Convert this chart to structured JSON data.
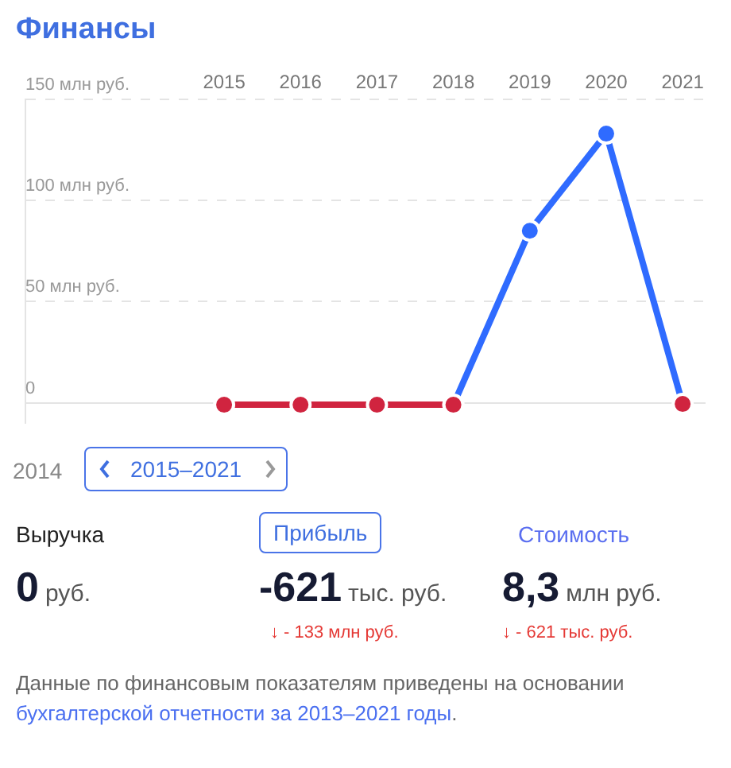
{
  "chart_data": {
    "type": "line",
    "title": "Финансы",
    "series": [
      {
        "color": "#d0243f",
        "x": [
          2015,
          2016,
          2017,
          2018
        ],
        "values": [
          -1,
          -1,
          -1,
          -1
        ]
      },
      {
        "color": "#2f6bff",
        "x": [
          2018,
          2019,
          2020,
          2021
        ],
        "values": [
          -1,
          85,
          133,
          -0.6
        ],
        "colors": [
          "#d0243f",
          "#2f6bff",
          "#2f6bff",
          "#d0243f"
        ]
      }
    ],
    "xlim": [
      2012.4,
      2021.3
    ],
    "xticks": [
      2015,
      2016,
      2017,
      2018,
      2019,
      2020,
      2021
    ],
    "ylim": [
      -10,
      150
    ],
    "yticks": [
      0,
      {
        "value": 50,
        "label": "50 млн руб."
      },
      {
        "value": 100,
        "label": "100 млн руб."
      },
      {
        "value": 150,
        "label": "150 млн руб."
      }
    ],
    "grid": "y",
    "legend": false,
    "marker": "circle",
    "line_style": "solid",
    "annotations": [
      "2014",
      "2015–2021",
      "Выручка",
      "Прибыль",
      "Стоимость",
      "0",
      "руб.",
      "-621",
      "тыс. руб.",
      "8,3",
      "млн руб.",
      "↓ - 133 млн руб.",
      "↓ - 621 тыс. руб.",
      "Данные по финансовым показателям приведены на основании ",
      "бухгалтерской отчетности за 2013–2021 годы",
      "."
    ]
  }
}
